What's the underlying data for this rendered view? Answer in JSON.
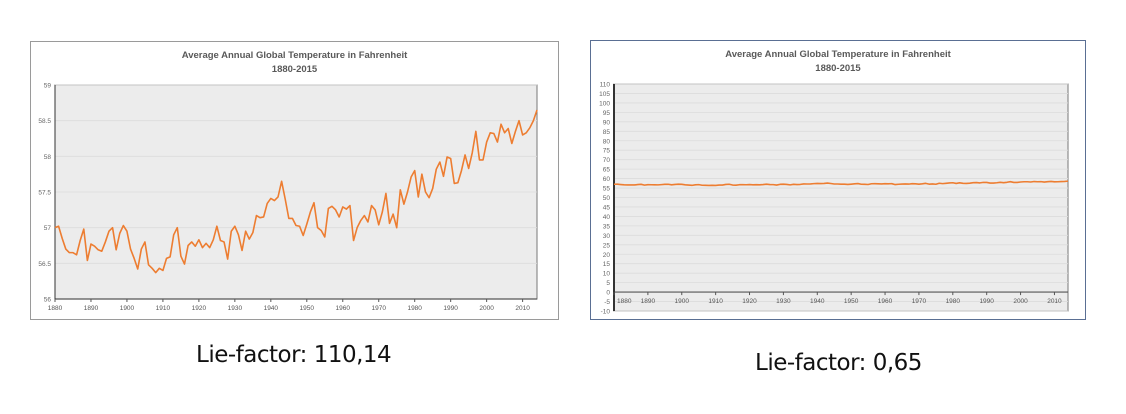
{
  "chart_data": [
    {
      "type": "line",
      "title": "Average Annual Global Temperature in Fahrenheit",
      "subtitle": "1880-2015",
      "xlim": [
        1880,
        2014
      ],
      "ylim": [
        56,
        59
      ],
      "yticks": [
        56,
        56.5,
        57,
        57.5,
        58,
        58.5,
        59
      ],
      "xticks": [
        1880,
        1890,
        1900,
        1910,
        1920,
        1930,
        1940,
        1950,
        1960,
        1970,
        1980,
        1990,
        2000,
        2010
      ],
      "grid": true,
      "line_color": "#ed7d31",
      "x_start": 1880,
      "values": [
        57.0,
        57.02,
        56.85,
        56.7,
        56.65,
        56.65,
        56.62,
        56.82,
        56.98,
        56.54,
        56.77,
        56.74,
        56.69,
        56.67,
        56.8,
        56.95,
        57.0,
        56.69,
        56.92,
        57.03,
        56.95,
        56.7,
        56.57,
        56.42,
        56.7,
        56.8,
        56.48,
        56.43,
        56.37,
        56.43,
        56.4,
        56.57,
        56.59,
        56.9,
        57.0,
        56.6,
        56.49,
        56.75,
        56.8,
        56.74,
        56.83,
        56.72,
        56.78,
        56.72,
        56.83,
        57.02,
        56.82,
        56.8,
        56.56,
        56.95,
        57.02,
        56.9,
        56.68,
        56.95,
        56.84,
        56.93,
        57.17,
        57.14,
        57.15,
        57.34,
        57.41,
        57.38,
        57.43,
        57.65,
        57.4,
        57.13,
        57.13,
        57.03,
        57.02,
        56.89,
        57.05,
        57.22,
        57.35,
        57.0,
        56.96,
        56.87,
        57.27,
        57.3,
        57.25,
        57.15,
        57.29,
        57.26,
        57.31,
        56.82,
        57.0,
        57.1,
        57.17,
        57.08,
        57.31,
        57.25,
        57.04,
        57.22,
        57.48,
        57.06,
        57.19,
        57.0,
        57.53,
        57.33,
        57.5,
        57.71,
        57.8,
        57.43,
        57.75,
        57.5,
        57.42,
        57.55,
        57.82,
        57.92,
        57.72,
        57.99,
        57.97,
        57.62,
        57.63,
        57.8,
        58.02,
        57.83,
        58.05,
        58.35,
        57.95,
        57.95,
        58.2,
        58.33,
        58.32,
        58.2,
        58.45,
        58.33,
        58.39,
        58.18,
        58.35,
        58.5,
        58.3,
        58.33,
        58.4,
        58.5,
        58.65
      ]
    },
    {
      "type": "line",
      "title": "Average Annual Global Temperature in Fahrenheit",
      "subtitle": "1880-2015",
      "xlim": [
        1880,
        2014
      ],
      "ylim": [
        -10,
        110
      ],
      "yticks": [
        -10,
        -5,
        0,
        5,
        10,
        15,
        20,
        25,
        30,
        35,
        40,
        45,
        50,
        55,
        60,
        65,
        70,
        75,
        80,
        85,
        90,
        95,
        100,
        105,
        110
      ],
      "xticks": [
        1880,
        1890,
        1900,
        1910,
        1920,
        1930,
        1940,
        1950,
        1960,
        1970,
        1980,
        1990,
        2000,
        2010
      ],
      "grid": true,
      "line_color": "#ed7d31",
      "same_series_as_left": true
    }
  ],
  "captions": {
    "left": "Lie-factor: 110,14",
    "right": "Lie-factor: 0,65"
  }
}
